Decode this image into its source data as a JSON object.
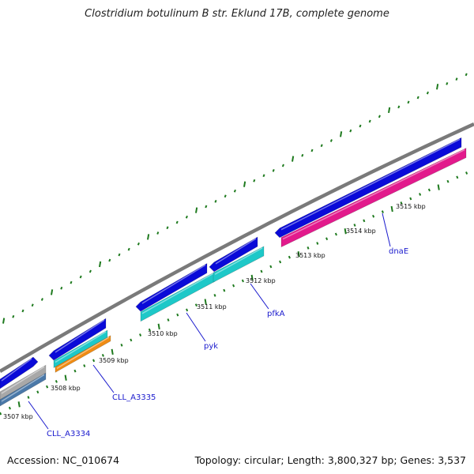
{
  "title": "Clostridium botulinum B str. Eklund 17B, complete genome",
  "footer": {
    "accession": "Accession: NC_010674",
    "summary": "Topology: circular; Length: 3,800,327 bp; Genes: 3,537"
  },
  "colors": {
    "backbone": "#7a7a7a",
    "tick": "#1e7a1e",
    "cds_forward": "#0a0ad8",
    "pink": "#e21a8c",
    "cyan": "#1ec8c8",
    "orange": "#f08c14",
    "gray": "#a8a8a8",
    "steel": "#4a78a8",
    "label": "#1a1acd"
  },
  "scale": {
    "labels": [
      "3507 kbp",
      "3508 kbp",
      "3509 kbp",
      "3510 kbp",
      "3511 kbp",
      "3512 kbp",
      "3513 kbp",
      "3514 kbp",
      "3515 kbp"
    ]
  },
  "genes": [
    {
      "name": "CLL_A3334",
      "color": "steel"
    },
    {
      "name": "CLL_A3335",
      "color": "orange"
    },
    {
      "name": "pyk",
      "color": "cyan"
    },
    {
      "name": "pfkA",
      "color": "cyan"
    },
    {
      "name": "dnaE",
      "color": "pink"
    }
  ]
}
